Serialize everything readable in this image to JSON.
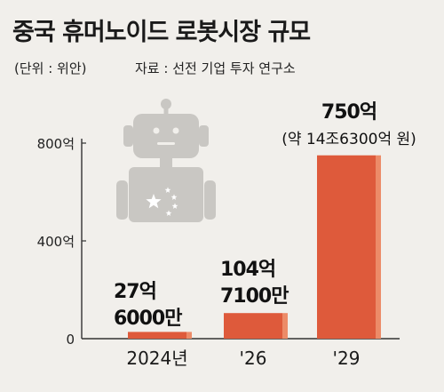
{
  "header": {
    "title": "중국 휴머노이드 로봇시장 규모",
    "unit_note": "(단위 : 위안)",
    "source": "자료 : 선전 기업 투자 연구소"
  },
  "chart_data": {
    "type": "bar",
    "title": "중국 휴머노이드 로봇시장 규모",
    "categories": [
      "2024년",
      "'26",
      "'29"
    ],
    "values": [
      27.6,
      104.71,
      750
    ],
    "ylim": [
      0,
      800
    ],
    "yticks": [
      "0",
      "400억",
      "800억"
    ],
    "yticks_values": [
      0,
      400,
      800
    ],
    "data_labels": [
      [
        "27억",
        "6000만"
      ],
      [
        "104억",
        "7100만"
      ],
      [
        "750억",
        "(약 14조6300억 원)"
      ]
    ],
    "grid": false,
    "legend": "none"
  },
  "colors": {
    "background": "#f1efeb",
    "bar_front": "#de5a3b",
    "bar_side": "#ec8b68",
    "axis": "#333333",
    "robot": "#c9c7c3"
  },
  "icons": [
    "robot-icon",
    "china-flag-stars-icon"
  ]
}
